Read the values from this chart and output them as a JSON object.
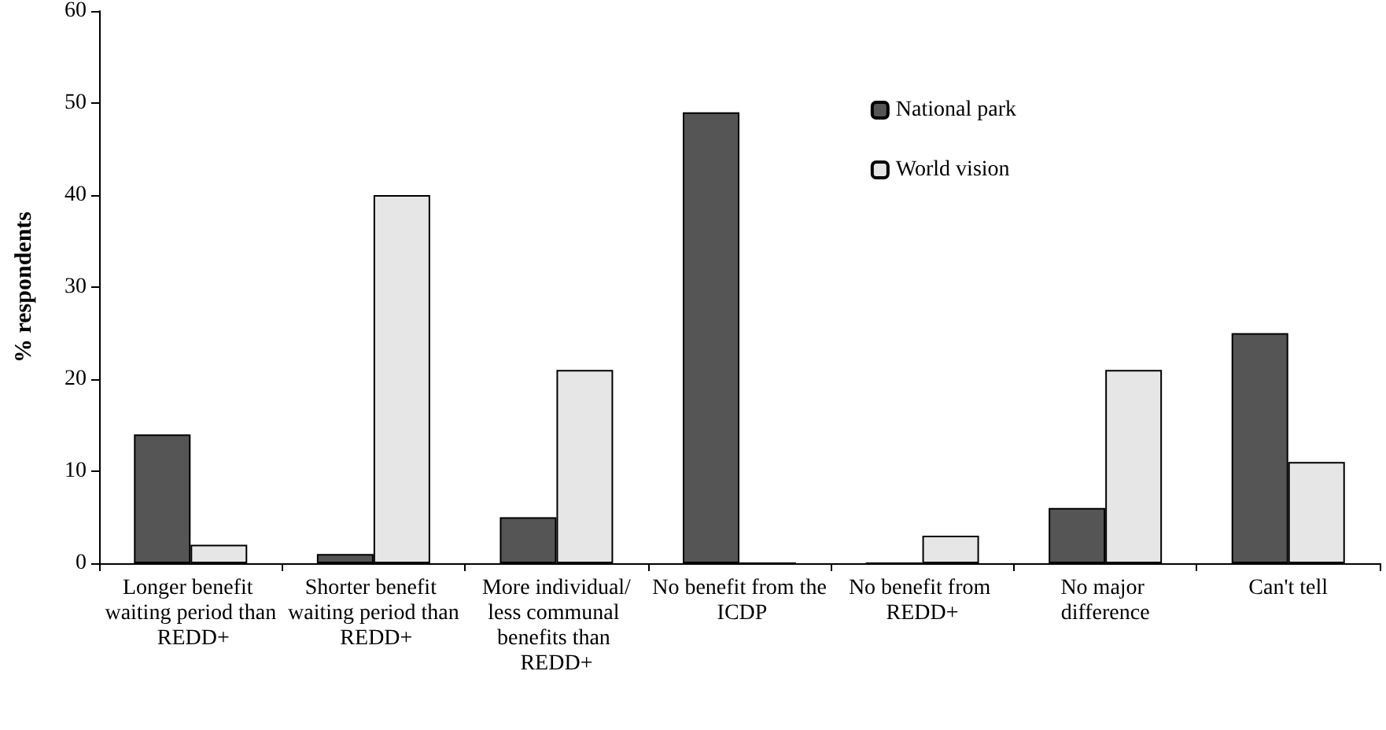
{
  "chart_data": {
    "type": "bar",
    "ylabel": "% respondents",
    "categories": [
      "Longer benefit waiting period than REDD+",
      "Shorter benefit waiting period than REDD+",
      "More individual/less communal benefits than REDD+",
      "No benefit from the ICDP",
      "No benefit from REDD+",
      "No major difference",
      "Can't tell"
    ],
    "series": [
      {
        "name": "National park",
        "color": "#555555",
        "values": [
          14,
          1,
          5,
          49,
          0,
          6,
          25
        ]
      },
      {
        "name": "World vision",
        "color": "#e6e6e6",
        "values": [
          2,
          40,
          21,
          0,
          3,
          21,
          11
        ]
      }
    ],
    "ylim": [
      0,
      60
    ],
    "yticks": [
      0,
      10,
      20,
      30,
      40,
      50,
      60
    ],
    "grid": false,
    "legend": "top right"
  }
}
